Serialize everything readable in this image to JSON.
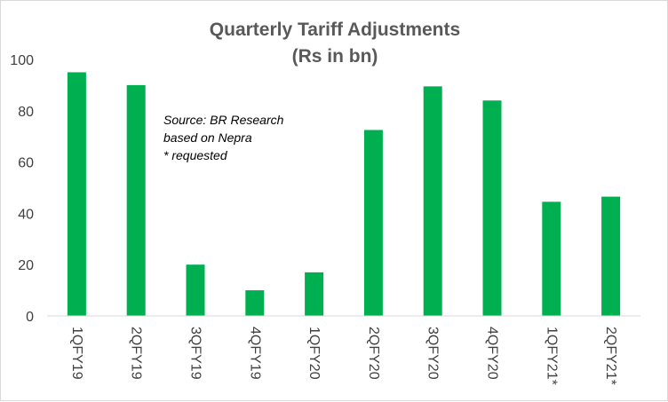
{
  "chart_data": {
    "type": "bar",
    "title": "Quarterly  Tariff  Adjustments",
    "subtitle": "(Rs in bn)",
    "categories": [
      "1QFY19",
      "2QFY19",
      "3QFY19",
      "4QFY19",
      "1QFY20",
      "2QFY20",
      "3QFY20",
      "4QFY20",
      "1QFY21*",
      "2QFY21*"
    ],
    "values": [
      95,
      90,
      20,
      10,
      17,
      72.5,
      89.5,
      84,
      44.5,
      46.5
    ],
    "ylim": [
      0,
      100
    ],
    "yticks": [
      "0",
      "20",
      "40",
      "60",
      "80",
      "100"
    ],
    "xlabel": "",
    "ylabel": "",
    "grid": false,
    "bar_color": "#00b050",
    "annotation": [
      "Source: BR Research",
      "based on Nepra",
      "* requested"
    ]
  }
}
